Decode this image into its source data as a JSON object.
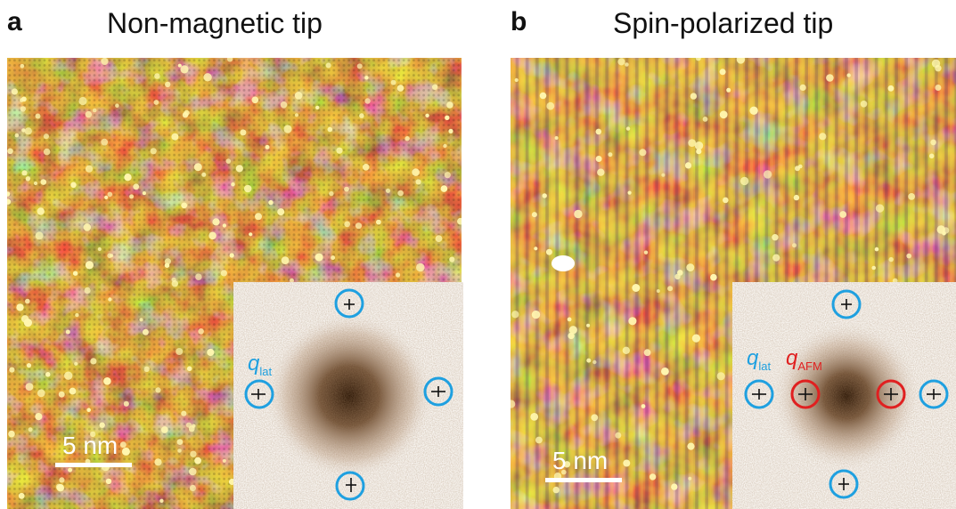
{
  "panels": [
    {
      "letter": "a",
      "title": "Non-magnetic tip",
      "scale_bar": "5 nm",
      "q_lat_label": "q",
      "q_lat_sub": "lat"
    },
    {
      "letter": "b",
      "title": "Spin-polarized tip",
      "scale_bar": "5 nm",
      "q_lat_label": "q",
      "q_lat_sub": "lat",
      "q_afm_label": "q",
      "q_afm_sub": "AFM"
    }
  ],
  "colors": {
    "stm_low": "#3a0d5a",
    "stm_mid": "#a8600a",
    "stm_high": "#ffe85a",
    "q_lat_circle": "#1fa0e0",
    "q_afm_circle": "#e02020",
    "fft_center": "#2a1505"
  }
}
